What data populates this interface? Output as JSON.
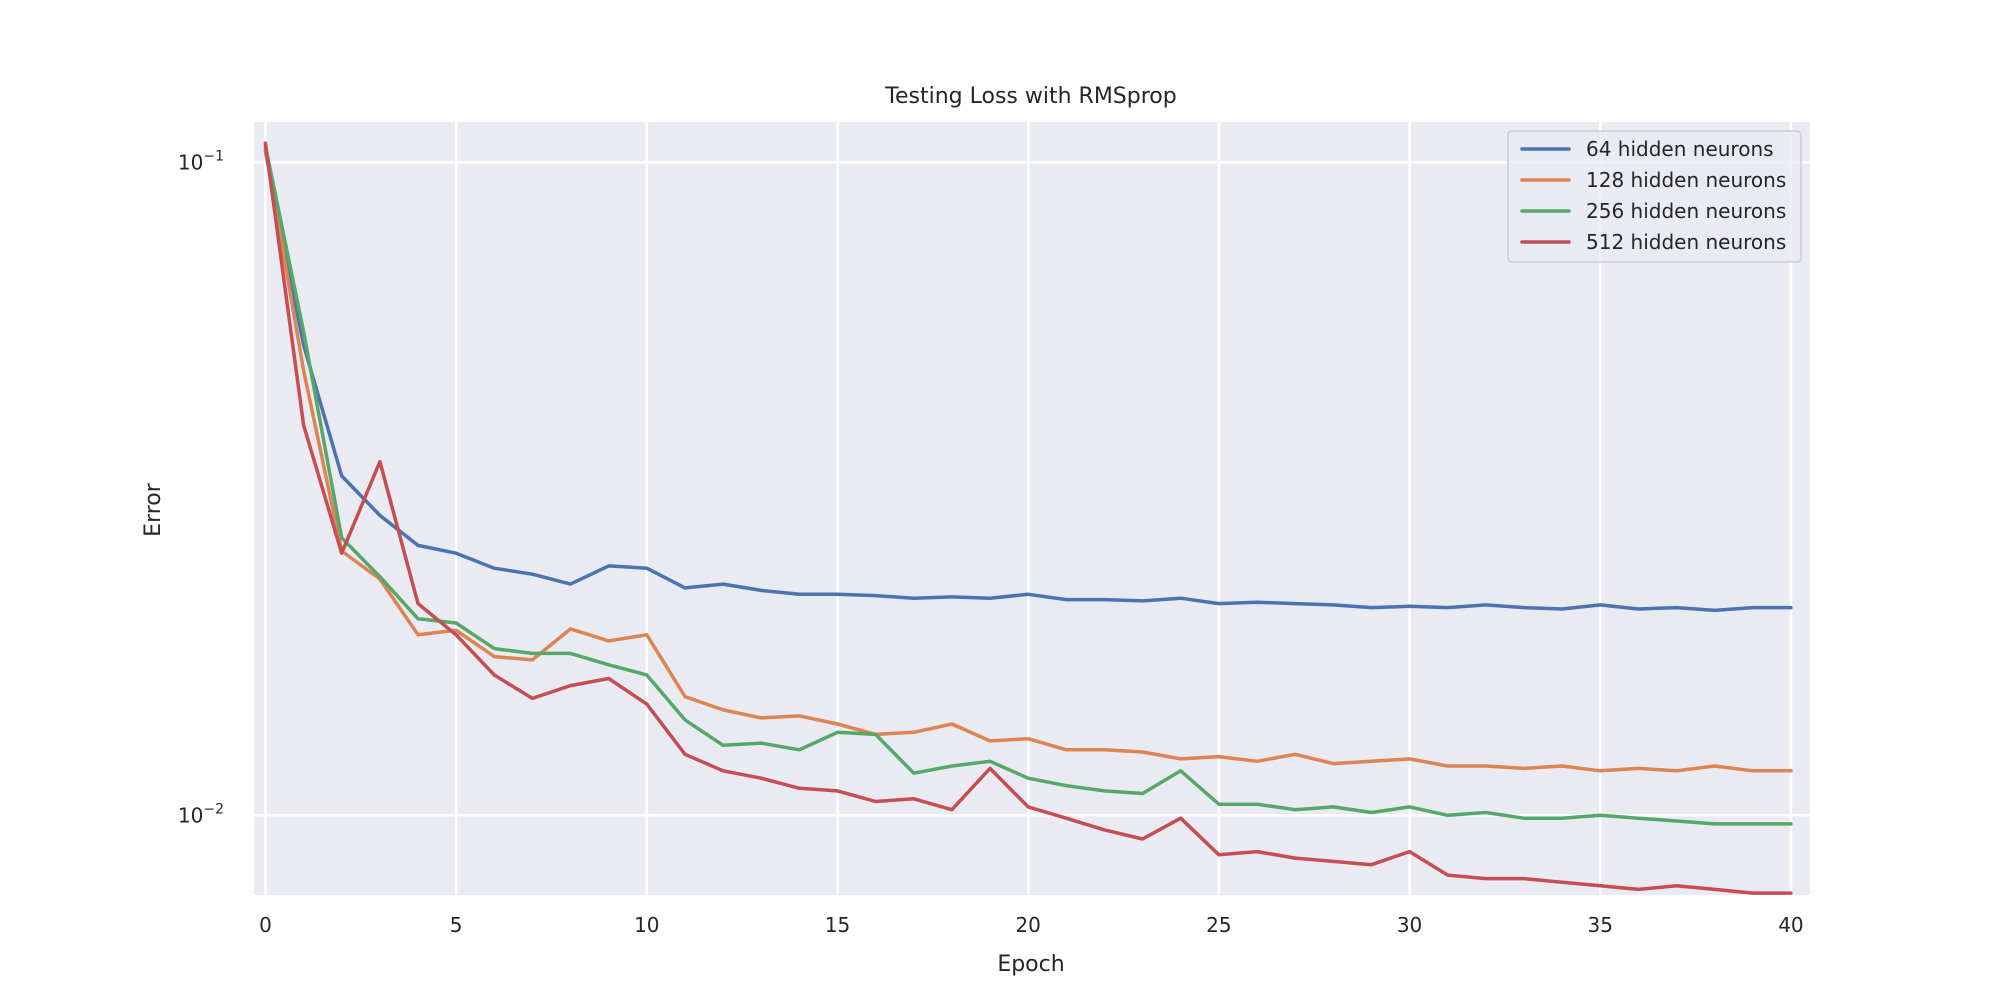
{
  "chart_data": {
    "type": "line",
    "title": "Testing Loss with RMSprop",
    "xlabel": "Epoch",
    "ylabel": "Error",
    "yscale": "log",
    "xlim": [
      -0.3,
      40.5
    ],
    "ylim": [
      0.00755,
      0.1153
    ],
    "grid": true,
    "legend_position": "top-right",
    "x_ticks": [
      0,
      5,
      10,
      15,
      20,
      25,
      30,
      35,
      40
    ],
    "x_tick_labels": [
      "0",
      "5",
      "10",
      "15",
      "20",
      "25",
      "30",
      "35",
      "40"
    ],
    "y_ticks": [
      0.1,
      0.01
    ],
    "y_tick_labels": [
      {
        "base": "10",
        "exp": "−1"
      },
      {
        "base": "10",
        "exp": "−2"
      }
    ],
    "x": [
      0,
      1,
      2,
      3,
      4,
      5,
      6,
      7,
      8,
      9,
      10,
      11,
      12,
      13,
      14,
      15,
      16,
      17,
      18,
      19,
      20,
      21,
      22,
      23,
      24,
      25,
      26,
      27,
      28,
      29,
      30,
      31,
      32,
      33,
      34,
      35,
      36,
      37,
      38,
      39,
      40
    ],
    "series": [
      {
        "name": "64 hidden neurons",
        "color": "#4c72b0",
        "values": [
          0.104,
          0.0525,
          0.0331,
          0.0288,
          0.0259,
          0.0252,
          0.0239,
          0.0234,
          0.0226,
          0.0241,
          0.0239,
          0.0223,
          0.0226,
          0.0221,
          0.0218,
          0.0218,
          0.0217,
          0.0215,
          0.0216,
          0.0215,
          0.0218,
          0.0214,
          0.0214,
          0.0213,
          0.0215,
          0.0211,
          0.0212,
          0.0211,
          0.021,
          0.0208,
          0.0209,
          0.0208,
          0.021,
          0.0208,
          0.0207,
          0.021,
          0.0207,
          0.0208,
          0.0206,
          0.0208,
          0.0208
        ]
      },
      {
        "name": "128 hidden neurons",
        "color": "#dd8452",
        "values": [
          0.105,
          0.048,
          0.0254,
          0.023,
          0.0189,
          0.0192,
          0.0175,
          0.0173,
          0.0193,
          0.0185,
          0.0189,
          0.0152,
          0.0145,
          0.0141,
          0.0142,
          0.0138,
          0.0133,
          0.0134,
          0.0138,
          0.013,
          0.0131,
          0.0126,
          0.0126,
          0.0125,
          0.0122,
          0.0123,
          0.0121,
          0.0124,
          0.012,
          0.0121,
          0.0122,
          0.0119,
          0.0119,
          0.0118,
          0.0119,
          0.0117,
          0.0118,
          0.0117,
          0.0119,
          0.0117,
          0.0117
        ]
      },
      {
        "name": "256 hidden neurons",
        "color": "#55a868",
        "values": [
          0.106,
          0.055,
          0.0266,
          0.0232,
          0.02,
          0.0197,
          0.018,
          0.0177,
          0.0177,
          0.017,
          0.0164,
          0.014,
          0.0128,
          0.0129,
          0.0126,
          0.0134,
          0.0133,
          0.0116,
          0.0119,
          0.0121,
          0.0114,
          0.0111,
          0.0109,
          0.0108,
          0.0117,
          0.0104,
          0.0104,
          0.0102,
          0.0103,
          0.0101,
          0.0103,
          0.01,
          0.0101,
          0.0099,
          0.0099,
          0.01,
          0.0099,
          0.0098,
          0.0097,
          0.0097,
          0.0097
        ]
      },
      {
        "name": "512 hidden neurons",
        "color": "#c44e52",
        "values": [
          0.107,
          0.0396,
          0.0252,
          0.0348,
          0.0211,
          0.0189,
          0.0164,
          0.0151,
          0.0158,
          0.0162,
          0.0148,
          0.0124,
          0.0117,
          0.0114,
          0.011,
          0.0109,
          0.0105,
          0.0106,
          0.0102,
          0.0118,
          0.0103,
          0.0099,
          0.0095,
          0.0092,
          0.0099,
          0.0087,
          0.0088,
          0.0086,
          0.0085,
          0.0084,
          0.0088,
          0.0081,
          0.008,
          0.008,
          0.0079,
          0.0078,
          0.0077,
          0.0078,
          0.0077,
          0.0076,
          0.0076
        ]
      }
    ]
  }
}
